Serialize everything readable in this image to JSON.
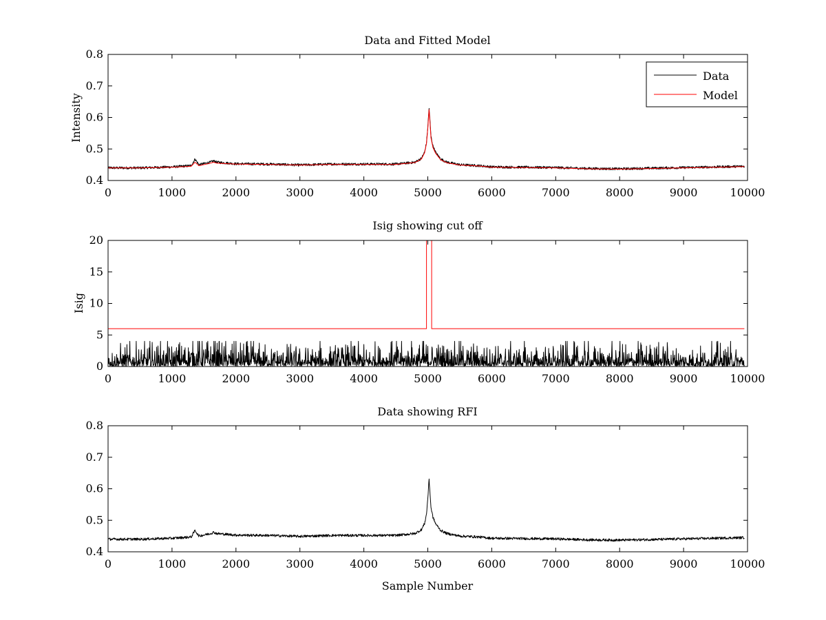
{
  "chart_data": [
    {
      "type": "line",
      "title": "Data and Fitted Model",
      "xlabel": "",
      "ylabel": "Intensity",
      "xlim": [
        0,
        10000
      ],
      "ylim": [
        0.4,
        0.8
      ],
      "xticks": [
        0,
        1000,
        2000,
        3000,
        4000,
        5000,
        6000,
        7000,
        8000,
        9000,
        10000
      ],
      "yticks": [
        0.4,
        0.5,
        0.6,
        0.7,
        0.8
      ],
      "grid": false,
      "legend_position": "top-right",
      "series": [
        {
          "name": "Data",
          "color": "#000000",
          "x": [
            0,
            500,
            1000,
            1300,
            1360,
            1420,
            1600,
            1650,
            1700,
            2000,
            2500,
            3000,
            3500,
            4000,
            4500,
            4800,
            4900,
            4950,
            4980,
            5000,
            5020,
            5030,
            5050,
            5080,
            5120,
            5200,
            5300,
            5500,
            5800,
            6000,
            6500,
            7000,
            7500,
            8000,
            8500,
            9000,
            9500,
            9950
          ],
          "y": [
            0.44,
            0.44,
            0.443,
            0.447,
            0.468,
            0.45,
            0.458,
            0.462,
            0.458,
            0.453,
            0.452,
            0.449,
            0.452,
            0.452,
            0.452,
            0.458,
            0.47,
            0.49,
            0.52,
            0.57,
            0.63,
            0.6,
            0.54,
            0.51,
            0.49,
            0.468,
            0.458,
            0.45,
            0.447,
            0.443,
            0.442,
            0.441,
            0.438,
            0.437,
            0.439,
            0.441,
            0.443,
            0.445
          ],
          "noise": 0.004
        },
        {
          "name": "Model",
          "color": "#ff0000",
          "x": [
            0,
            500,
            1000,
            1300,
            1360,
            1420,
            1600,
            1650,
            1700,
            2000,
            2500,
            3000,
            3500,
            4000,
            4500,
            4800,
            4900,
            4950,
            4980,
            5000,
            5020,
            5030,
            5050,
            5080,
            5120,
            5200,
            5300,
            5500,
            5800,
            6000,
            6500,
            7000,
            7500,
            8000,
            8500,
            9000,
            9500,
            9950
          ],
          "y": [
            0.44,
            0.44,
            0.442,
            0.445,
            0.458,
            0.447,
            0.455,
            0.458,
            0.455,
            0.452,
            0.451,
            0.449,
            0.451,
            0.451,
            0.451,
            0.457,
            0.468,
            0.488,
            0.518,
            0.565,
            0.625,
            0.595,
            0.535,
            0.505,
            0.487,
            0.466,
            0.456,
            0.449,
            0.446,
            0.442,
            0.441,
            0.44,
            0.437,
            0.436,
            0.438,
            0.44,
            0.442,
            0.444
          ]
        }
      ]
    },
    {
      "type": "line",
      "title": "Isig showing cut off",
      "xlabel": "",
      "ylabel": "Isig",
      "xlim": [
        0,
        10000
      ],
      "ylim": [
        0,
        20
      ],
      "xticks": [
        0,
        1000,
        2000,
        3000,
        4000,
        5000,
        6000,
        7000,
        8000,
        9000,
        10000
      ],
      "yticks": [
        0,
        5,
        10,
        15,
        20
      ],
      "grid": false,
      "series": [
        {
          "color": "#000000",
          "style": "noise-spikes",
          "x": [
            0,
            1000,
            1300,
            2000,
            3000,
            4000,
            5000,
            6000,
            7000,
            8000,
            8500,
            9000,
            9950
          ],
          "y": [
            1.2,
            1.4,
            1.8,
            1.4,
            1.2,
            1.3,
            1.6,
            1.3,
            1.2,
            1.2,
            1.5,
            1.2,
            1.2
          ],
          "max": 4.0
        },
        {
          "color": "#ff0000",
          "style": "step",
          "x": [
            0,
            4980,
            4980,
            5060,
            5060,
            9950
          ],
          "y": [
            6,
            6,
            20,
            20,
            6,
            6
          ]
        }
      ]
    },
    {
      "type": "line",
      "title": "Data showing RFI",
      "xlabel": "Sample Number",
      "ylabel": "",
      "xlim": [
        0,
        10000
      ],
      "ylim": [
        0.4,
        0.8
      ],
      "xticks": [
        0,
        1000,
        2000,
        3000,
        4000,
        5000,
        6000,
        7000,
        8000,
        9000,
        10000
      ],
      "yticks": [
        0.4,
        0.5,
        0.6,
        0.7,
        0.8
      ],
      "grid": false,
      "series": [
        {
          "color": "#000000",
          "x": [
            0,
            500,
            1000,
            1300,
            1360,
            1420,
            1600,
            1650,
            1700,
            2000,
            2500,
            3000,
            3500,
            4000,
            4500,
            4800,
            4900,
            4950,
            4980,
            5000,
            5020,
            5030,
            5050,
            5080,
            5120,
            5200,
            5300,
            5500,
            5800,
            6000,
            6500,
            7000,
            7500,
            8000,
            8500,
            9000,
            9500,
            9950
          ],
          "y": [
            0.44,
            0.44,
            0.443,
            0.447,
            0.468,
            0.45,
            0.458,
            0.462,
            0.458,
            0.453,
            0.452,
            0.449,
            0.452,
            0.452,
            0.452,
            0.458,
            0.47,
            0.49,
            0.52,
            0.57,
            0.63,
            0.6,
            0.54,
            0.51,
            0.49,
            0.468,
            0.458,
            0.45,
            0.447,
            0.443,
            0.442,
            0.441,
            0.438,
            0.437,
            0.439,
            0.441,
            0.443,
            0.445
          ],
          "noise": 0.004
        }
      ]
    }
  ]
}
